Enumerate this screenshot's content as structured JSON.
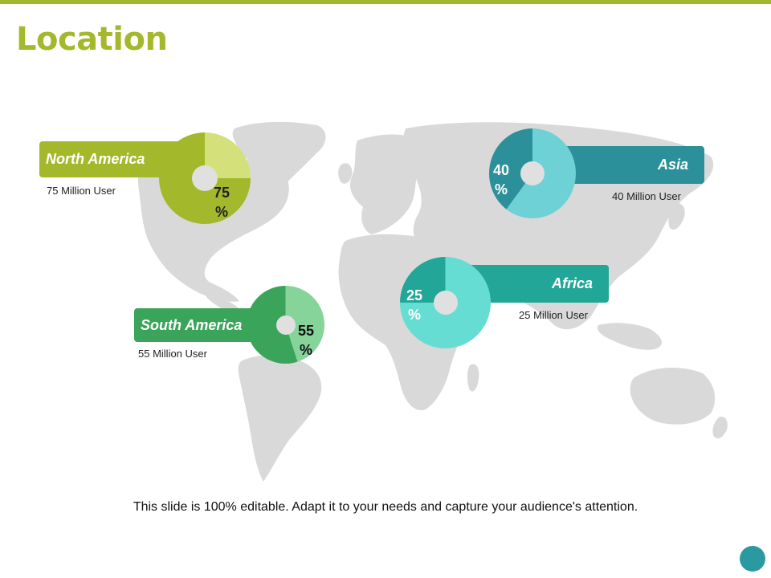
{
  "title": "Location",
  "footer": "This slide is 100% editable. Adapt it to your needs and capture your audience's attention.",
  "colors": {
    "accent": "#a4b82c",
    "map": "#d9d9d9",
    "corner": "#2a9aa0"
  },
  "regions": [
    {
      "id": "north_america",
      "label": "North America",
      "users": "75 Million User",
      "percent": "75",
      "percent_sign": "%",
      "value": 75,
      "color_main": "#a4b82c",
      "color_light": "#d4e07a"
    },
    {
      "id": "south_america",
      "label": "South America",
      "users": "55 Million User",
      "percent": "55",
      "percent_sign": "%",
      "value": 55,
      "color_main": "#3aa45a",
      "color_light": "#86d49a"
    },
    {
      "id": "asia",
      "label": "Asia",
      "users": "40 Million User",
      "percent": "40",
      "percent_sign": "%",
      "value": 40,
      "color_main": "#2b9099",
      "color_light": "#6dd1d6"
    },
    {
      "id": "africa",
      "label": "Africa",
      "users": "25 Million User",
      "percent": "25",
      "percent_sign": "%",
      "value": 25,
      "color_main": "#22a697",
      "color_light": "#66ddd2"
    }
  ]
}
